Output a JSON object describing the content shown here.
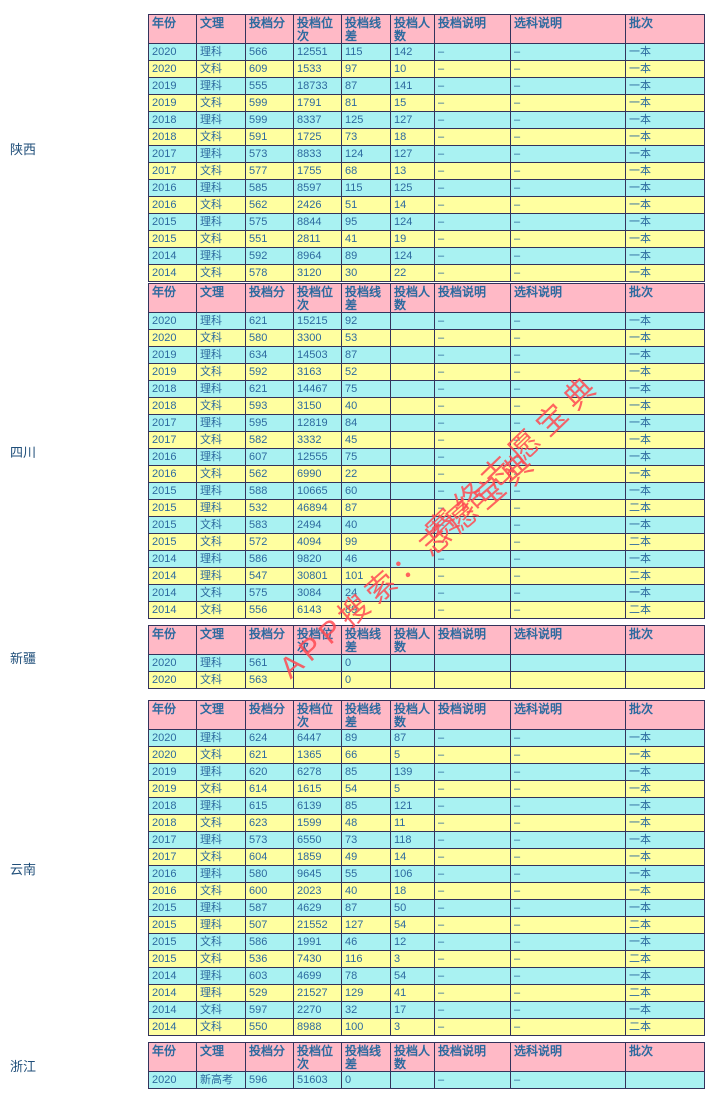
{
  "colors": {
    "header_bg": "#ffb9c6",
    "row_cyan": "#a9f2f2",
    "row_yellow": "#ffffa0",
    "text_blue": "#2d6a9f",
    "label_text": "#1f4e79",
    "border": "#33335c",
    "wm": "#ff4a52"
  },
  "watermark": {
    "line1": "赛络志愿宝典",
    "line2": "APP搜索：志愿宝典"
  },
  "columns": [
    "年份",
    "文理",
    "投档分",
    "投档位次",
    "投档线差",
    "投档人数",
    "投档说明",
    "选科说明",
    "批次"
  ],
  "sections": [
    {
      "province": "陕西",
      "rows": [
        [
          "2020",
          "理科",
          "566",
          "12551",
          "115",
          "142",
          "–",
          "–",
          "一本"
        ],
        [
          "2020",
          "文科",
          "609",
          "1533",
          "97",
          "10",
          "–",
          "–",
          "一本"
        ],
        [
          "2019",
          "理科",
          "555",
          "18733",
          "87",
          "141",
          "–",
          "–",
          "一本"
        ],
        [
          "2019",
          "文科",
          "599",
          "1791",
          "81",
          "15",
          "–",
          "–",
          "一本"
        ],
        [
          "2018",
          "理科",
          "599",
          "8337",
          "125",
          "127",
          "–",
          "–",
          "一本"
        ],
        [
          "2018",
          "文科",
          "591",
          "1725",
          "73",
          "18",
          "–",
          "–",
          "一本"
        ],
        [
          "2017",
          "理科",
          "573",
          "8833",
          "124",
          "127",
          "–",
          "–",
          "一本"
        ],
        [
          "2017",
          "文科",
          "577",
          "1755",
          "68",
          "13",
          "–",
          "–",
          "一本"
        ],
        [
          "2016",
          "理科",
          "585",
          "8597",
          "115",
          "125",
          "–",
          "–",
          "一本"
        ],
        [
          "2016",
          "文科",
          "562",
          "2426",
          "51",
          "14",
          "–",
          "–",
          "一本"
        ],
        [
          "2015",
          "理科",
          "575",
          "8844",
          "95",
          "124",
          "–",
          "–",
          "一本"
        ],
        [
          "2015",
          "文科",
          "551",
          "2811",
          "41",
          "19",
          "–",
          "–",
          "一本"
        ],
        [
          "2014",
          "理科",
          "592",
          "8964",
          "89",
          "124",
          "–",
          "–",
          "一本"
        ],
        [
          "2014",
          "文科",
          "578",
          "3120",
          "30",
          "22",
          "–",
          "–",
          "一本"
        ]
      ]
    },
    {
      "province": "四川",
      "rows": [
        [
          "2020",
          "理科",
          "621",
          "15215",
          "92",
          "",
          "–",
          "–",
          "一本"
        ],
        [
          "2020",
          "文科",
          "580",
          "3300",
          "53",
          "",
          "–",
          "–",
          "一本"
        ],
        [
          "2019",
          "理科",
          "634",
          "14503",
          "87",
          "",
          "–",
          "–",
          "一本"
        ],
        [
          "2019",
          "文科",
          "592",
          "3163",
          "52",
          "",
          "–",
          "–",
          "一本"
        ],
        [
          "2018",
          "理科",
          "621",
          "14467",
          "75",
          "",
          "–",
          "–",
          "一本"
        ],
        [
          "2018",
          "文科",
          "593",
          "3150",
          "40",
          "",
          "–",
          "–",
          "一本"
        ],
        [
          "2017",
          "理科",
          "595",
          "12819",
          "84",
          "",
          "–",
          "–",
          "一本"
        ],
        [
          "2017",
          "文科",
          "582",
          "3332",
          "45",
          "",
          "–",
          "–",
          "一本"
        ],
        [
          "2016",
          "理科",
          "607",
          "12555",
          "75",
          "",
          "–",
          "–",
          "一本"
        ],
        [
          "2016",
          "文科",
          "562",
          "6990",
          "22",
          "",
          "–",
          "–",
          "一本"
        ],
        [
          "2015",
          "理科",
          "588",
          "10665",
          "60",
          "",
          "–",
          "–",
          "一本"
        ],
        [
          "2015",
          "理科",
          "532",
          "46894",
          "87",
          "",
          "–",
          "–",
          "二本"
        ],
        [
          "2015",
          "文科",
          "583",
          "2494",
          "40",
          "",
          "–",
          "–",
          "一本"
        ],
        [
          "2015",
          "文科",
          "572",
          "4094",
          "99",
          "",
          "–",
          "–",
          "二本"
        ],
        [
          "2014",
          "理科",
          "586",
          "9820",
          "46",
          "",
          "–",
          "–",
          "一本"
        ],
        [
          "2014",
          "理科",
          "547",
          "30801",
          "101",
          "",
          "–",
          "–",
          "二本"
        ],
        [
          "2014",
          "文科",
          "575",
          "3084",
          "24",
          "",
          "–",
          "–",
          "一本"
        ],
        [
          "2014",
          "文科",
          "556",
          "6143",
          "89",
          "",
          "–",
          "–",
          "二本"
        ]
      ]
    },
    {
      "province": "新疆",
      "rows": [
        [
          "2020",
          "理科",
          "561",
          "",
          "0",
          "",
          "",
          "",
          ""
        ],
        [
          "2020",
          "文科",
          "563",
          "",
          "0",
          "",
          "",
          "",
          ""
        ]
      ]
    },
    {
      "province": "云南",
      "rows": [
        [
          "2020",
          "理科",
          "624",
          "6447",
          "89",
          "87",
          "–",
          "–",
          "一本"
        ],
        [
          "2020",
          "文科",
          "621",
          "1365",
          "66",
          "5",
          "–",
          "–",
          "一本"
        ],
        [
          "2019",
          "理科",
          "620",
          "6278",
          "85",
          "139",
          "–",
          "–",
          "一本"
        ],
        [
          "2019",
          "文科",
          "614",
          "1615",
          "54",
          "5",
          "–",
          "–",
          "一本"
        ],
        [
          "2018",
          "理科",
          "615",
          "6139",
          "85",
          "121",
          "–",
          "–",
          "一本"
        ],
        [
          "2018",
          "文科",
          "623",
          "1599",
          "48",
          "11",
          "–",
          "–",
          "一本"
        ],
        [
          "2017",
          "理科",
          "573",
          "6550",
          "73",
          "118",
          "–",
          "–",
          "一本"
        ],
        [
          "2017",
          "文科",
          "604",
          "1859",
          "49",
          "14",
          "–",
          "–",
          "一本"
        ],
        [
          "2016",
          "理科",
          "580",
          "9645",
          "55",
          "106",
          "–",
          "–",
          "一本"
        ],
        [
          "2016",
          "文科",
          "600",
          "2023",
          "40",
          "18",
          "–",
          "–",
          "一本"
        ],
        [
          "2015",
          "理科",
          "587",
          "4629",
          "87",
          "50",
          "–",
          "–",
          "一本"
        ],
        [
          "2015",
          "理科",
          "507",
          "21552",
          "127",
          "54",
          "–",
          "–",
          "二本"
        ],
        [
          "2015",
          "文科",
          "586",
          "1991",
          "46",
          "12",
          "–",
          "–",
          "一本"
        ],
        [
          "2015",
          "文科",
          "536",
          "7430",
          "116",
          "3",
          "–",
          "–",
          "二本"
        ],
        [
          "2014",
          "理科",
          "603",
          "4699",
          "78",
          "54",
          "–",
          "–",
          "一本"
        ],
        [
          "2014",
          "理科",
          "529",
          "21527",
          "129",
          "41",
          "–",
          "–",
          "二本"
        ],
        [
          "2014",
          "文科",
          "597",
          "2270",
          "32",
          "17",
          "–",
          "–",
          "一本"
        ],
        [
          "2014",
          "文科",
          "550",
          "8988",
          "100",
          "3",
          "–",
          "–",
          "二本"
        ]
      ]
    },
    {
      "province": "浙江",
      "rows": [
        [
          "2020",
          "新高考",
          "596",
          "51603",
          "0",
          "",
          "–",
          "–",
          ""
        ]
      ]
    }
  ]
}
